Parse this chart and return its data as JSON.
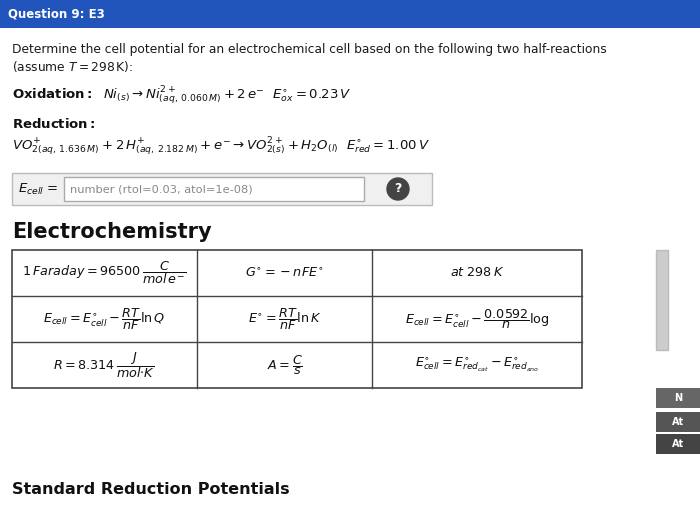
{
  "header_text": "Question 9: E3",
  "header_bg": "#2255BB",
  "header_text_color": "#FFFFFF",
  "bg_color": "#EBEBEB",
  "body_bg": "#FFFFFF",
  "problem_line1": "Determine the cell potential for an electrochemical cell based on the following two half-reactions",
  "problem_line2": "(assume $T = 298\\,\\mathrm{K}$):",
  "answer_placeholder": "number (rtol=0.03, atol=1e-08)",
  "section_title": "Electrochemistry",
  "footer_text": "Standard Reduction Potentials",
  "tab_labels": [
    "At",
    "At"
  ],
  "tab_colors": [
    "#555555",
    "#444444"
  ],
  "scroll_color": "#CCCCCC"
}
